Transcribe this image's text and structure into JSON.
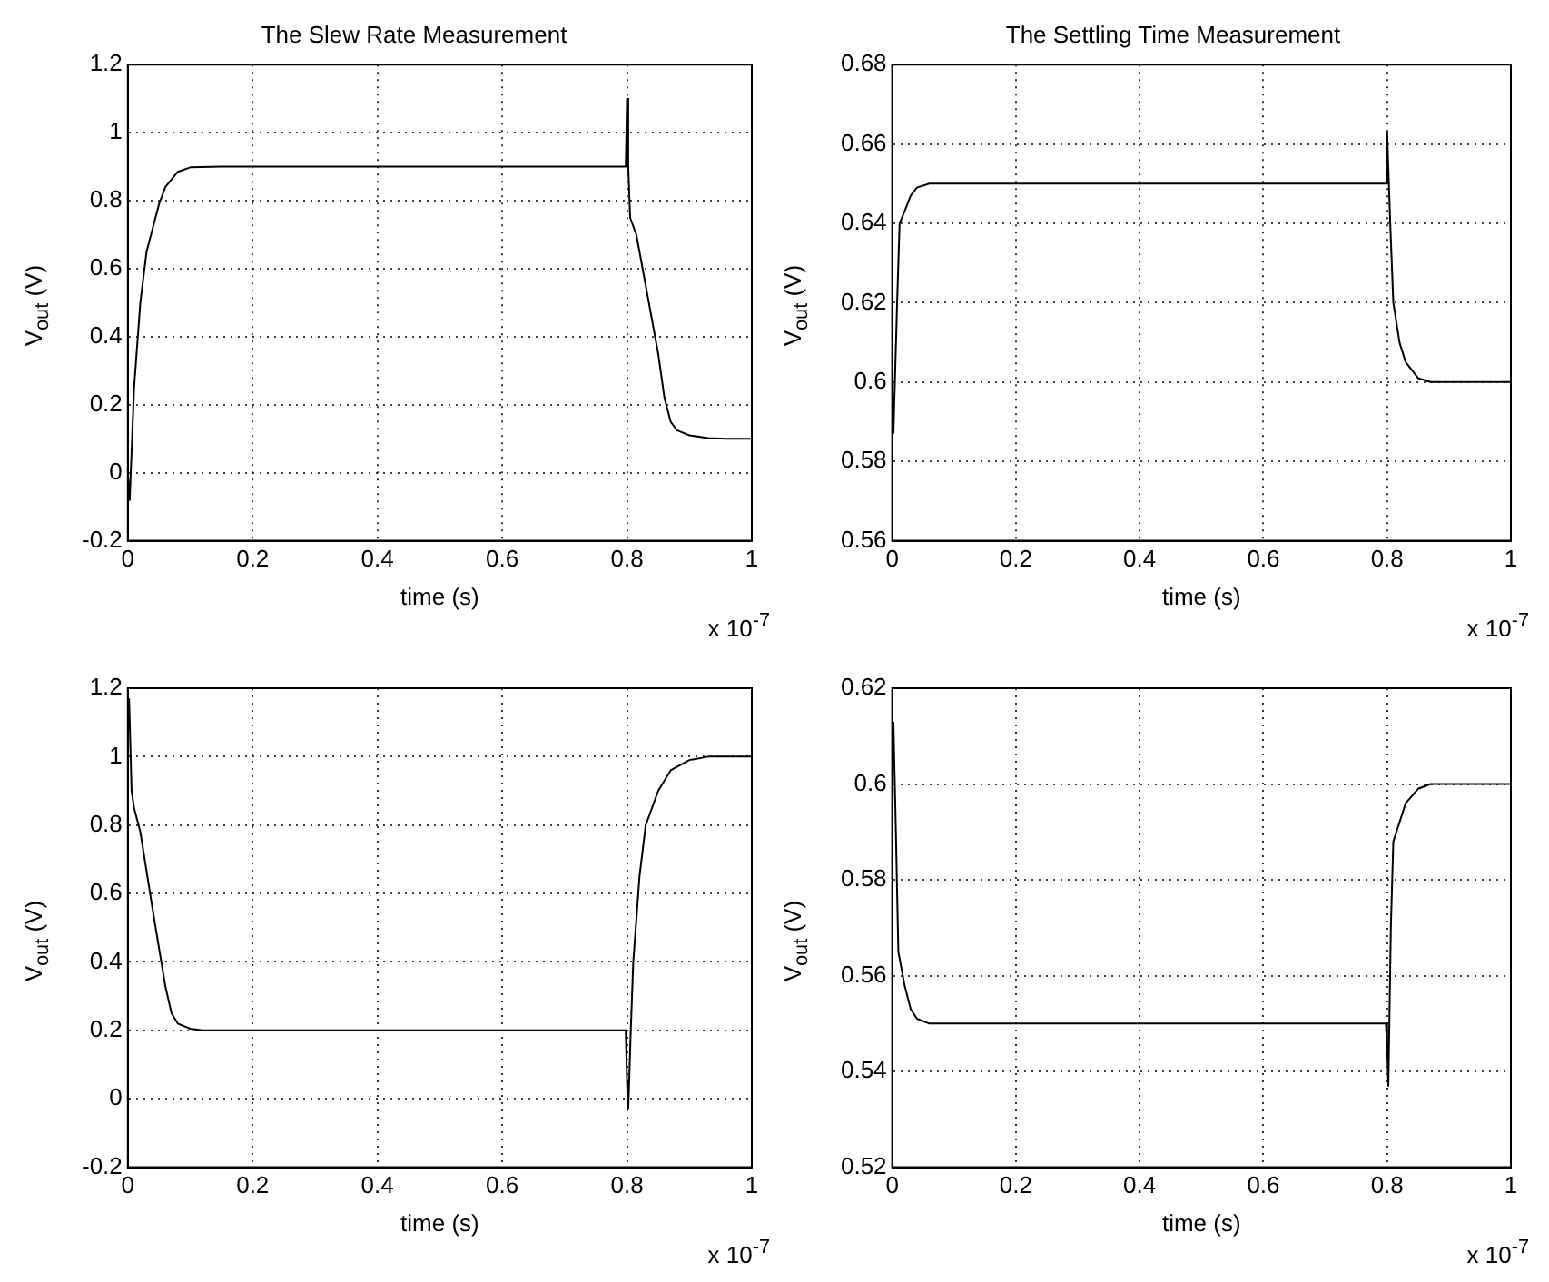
{
  "chart_data": [
    {
      "type": "line",
      "title": "The Slew Rate Measurement",
      "xlabel": "time (s)",
      "ylabel": "V$_{out}$ (V)",
      "annotations": [
        "x 10$^{-7}$"
      ],
      "grid": true,
      "legend": false,
      "marker": "none",
      "line_style": "solid",
      "xlim": [
        0,
        1
      ],
      "xticks": [
        0,
        0.2,
        0.4,
        0.6,
        0.8,
        1
      ],
      "ylim": [
        -0.2,
        1.2
      ],
      "yticks": [
        -0.2,
        0,
        0.2,
        0.4,
        0.6,
        0.8,
        1,
        1.2
      ],
      "series": [
        {
          "color": "#000000",
          "x": [
            0,
            0.003,
            0.01,
            0.02,
            0.03,
            0.04,
            0.05,
            0.06,
            0.08,
            0.1,
            0.15,
            0.798,
            0.8,
            0.802,
            0.805,
            0.815,
            0.83,
            0.85,
            0.86,
            0.87,
            0.88,
            0.9,
            0.93,
            0.96,
            1
          ],
          "values": [
            0,
            -0.08,
            0.25,
            0.5,
            0.65,
            0.72,
            0.79,
            0.84,
            0.885,
            0.898,
            0.9,
            0.9,
            1.1,
            0.9,
            0.75,
            0.7,
            0.55,
            0.35,
            0.22,
            0.15,
            0.125,
            0.11,
            0.102,
            0.1,
            0.1
          ]
        }
      ]
    },
    {
      "type": "line",
      "title": "The Settling Time Measurement",
      "xlabel": "time (s)",
      "ylabel": "V$_{out}$ (V)",
      "annotations": [
        "x 10$^{-7}$"
      ],
      "grid": true,
      "legend": false,
      "marker": "none",
      "line_style": "solid",
      "xlim": [
        0,
        1
      ],
      "xticks": [
        0,
        0.2,
        0.4,
        0.6,
        0.8,
        1
      ],
      "ylim": [
        0.56,
        0.68
      ],
      "yticks": [
        0.56,
        0.58,
        0.6,
        0.62,
        0.64,
        0.66,
        0.68
      ],
      "series": [
        {
          "color": "#000000",
          "x": [
            0.002,
            0.008,
            0.012,
            0.02,
            0.03,
            0.04,
            0.06,
            0.798,
            0.8,
            0.805,
            0.81,
            0.82,
            0.83,
            0.85,
            0.87,
            1
          ],
          "values": [
            0.587,
            0.62,
            0.64,
            0.643,
            0.647,
            0.649,
            0.65,
            0.65,
            0.663,
            0.64,
            0.62,
            0.61,
            0.605,
            0.601,
            0.6,
            0.6
          ]
        }
      ]
    },
    {
      "type": "line",
      "xlabel": "time (s)",
      "ylabel": "V$_{out}$ (V)",
      "annotations": [
        "x 10$^{-7}$"
      ],
      "grid": true,
      "legend": false,
      "marker": "none",
      "line_style": "solid",
      "xlim": [
        0,
        1
      ],
      "xticks": [
        0,
        0.2,
        0.4,
        0.6,
        0.8,
        1
      ],
      "ylim": [
        -0.2,
        1.2
      ],
      "yticks": [
        -0.2,
        0,
        0.2,
        0.4,
        0.6,
        0.8,
        1,
        1.2
      ],
      "series": [
        {
          "color": "#000000",
          "x": [
            0.002,
            0.006,
            0.01,
            0.02,
            0.04,
            0.06,
            0.07,
            0.08,
            0.1,
            0.12,
            0.798,
            0.8,
            0.802,
            0.806,
            0.81,
            0.82,
            0.83,
            0.85,
            0.87,
            0.9,
            0.93,
            1
          ],
          "values": [
            1.17,
            0.9,
            0.85,
            0.78,
            0.55,
            0.33,
            0.25,
            0.22,
            0.205,
            0.2,
            0.2,
            0.05,
            -0.03,
            0.2,
            0.4,
            0.65,
            0.8,
            0.9,
            0.96,
            0.99,
            1,
            1
          ]
        }
      ]
    },
    {
      "type": "line",
      "xlabel": "time (s)",
      "ylabel": "V$_{out}$ (V)",
      "annotations": [
        "x 10$^{-7}$"
      ],
      "grid": true,
      "legend": false,
      "marker": "none",
      "line_style": "solid",
      "xlim": [
        0,
        1
      ],
      "xticks": [
        0,
        0.2,
        0.4,
        0.6,
        0.8,
        1
      ],
      "ylim": [
        0.52,
        0.62
      ],
      "yticks": [
        0.52,
        0.54,
        0.56,
        0.58,
        0.6,
        0.62
      ],
      "series": [
        {
          "color": "#000000",
          "x": [
            0.002,
            0.006,
            0.01,
            0.02,
            0.03,
            0.04,
            0.06,
            0.798,
            0.8,
            0.802,
            0.806,
            0.81,
            0.82,
            0.83,
            0.85,
            0.87,
            1
          ],
          "values": [
            0.613,
            0.59,
            0.565,
            0.558,
            0.553,
            0.551,
            0.55,
            0.55,
            0.545,
            0.537,
            0.57,
            0.588,
            0.592,
            0.596,
            0.599,
            0.6,
            0.6
          ]
        }
      ]
    }
  ]
}
